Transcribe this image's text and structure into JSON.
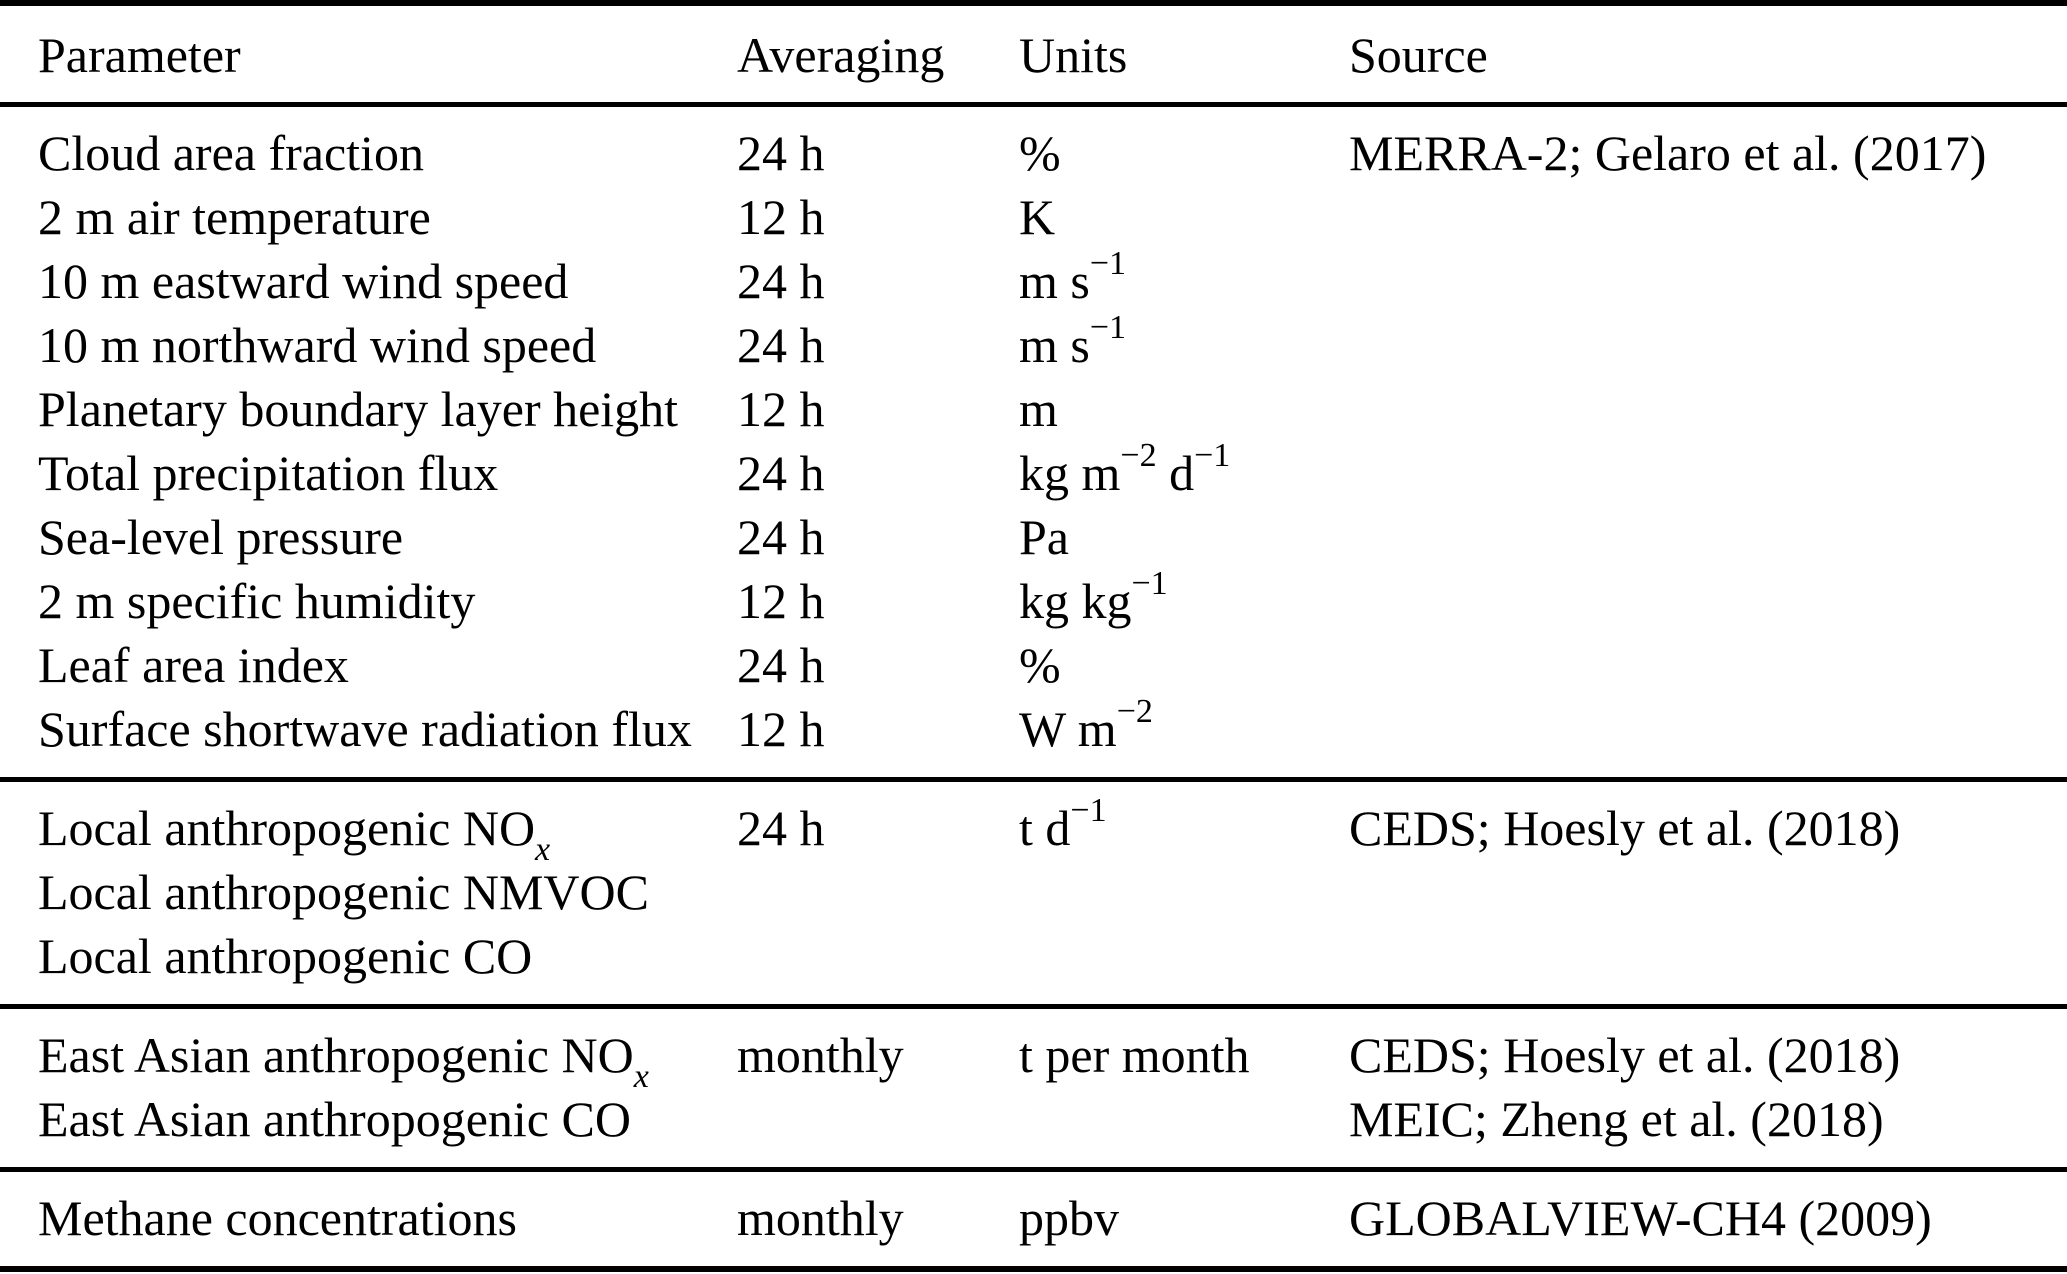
{
  "page": {
    "background": "#ffffff",
    "text_color": "#000000",
    "rule_color": "#000000"
  },
  "table": {
    "columns": [
      "Parameter",
      "Averaging",
      "Units",
      "Source"
    ],
    "sections": [
      {
        "rows": [
          {
            "parameter": "Cloud area fraction",
            "averaging": "24 h",
            "units": "%",
            "source": "MERRA-2; Gelaro et al. (2017)"
          },
          {
            "parameter": "2 m air temperature",
            "averaging": "12 h",
            "units": "K",
            "source": ""
          },
          {
            "parameter": "10 m eastward wind speed",
            "averaging": "24 h",
            "units": "m s^{−1}",
            "source": ""
          },
          {
            "parameter": "10 m northward wind speed",
            "averaging": "24 h",
            "units": "m s^{−1}",
            "source": ""
          },
          {
            "parameter": "Planetary boundary layer height",
            "averaging": "12 h",
            "units": "m",
            "source": ""
          },
          {
            "parameter": "Total precipitation flux",
            "averaging": "24 h",
            "units": "kg m^{−2} d^{−1}",
            "source": ""
          },
          {
            "parameter": "Sea-level pressure",
            "averaging": "24 h",
            "units": "Pa",
            "source": ""
          },
          {
            "parameter": "2 m specific humidity",
            "averaging": "12 h",
            "units": "kg kg^{−1}",
            "source": ""
          },
          {
            "parameter": "Leaf area index",
            "averaging": "24 h",
            "units": "%",
            "source": ""
          },
          {
            "parameter": "Surface shortwave radiation flux",
            "averaging": "12 h",
            "units": "W m^{−2}",
            "source": ""
          }
        ]
      },
      {
        "rows": [
          {
            "parameter": "Local anthropogenic NO_{x}",
            "averaging": "24 h",
            "units": "t d^{−1}",
            "source": "CEDS; Hoesly et al. (2018)"
          },
          {
            "parameter": "Local anthropogenic NMVOC",
            "averaging": "",
            "units": "",
            "source": ""
          },
          {
            "parameter": "Local anthropogenic CO",
            "averaging": "",
            "units": "",
            "source": ""
          }
        ]
      },
      {
        "rows": [
          {
            "parameter": "East Asian anthropogenic NO_{x}",
            "averaging": "monthly",
            "units": "t per month",
            "source": "CEDS; Hoesly et al. (2018)"
          },
          {
            "parameter": "East Asian anthropogenic CO",
            "averaging": "",
            "units": "",
            "source": "MEIC; Zheng et al. (2018)"
          }
        ]
      },
      {
        "rows": [
          {
            "parameter": "Methane concentrations",
            "averaging": "monthly",
            "units": "ppbv",
            "source": "GLOBALVIEW-CH4 (2009)"
          }
        ]
      }
    ]
  }
}
